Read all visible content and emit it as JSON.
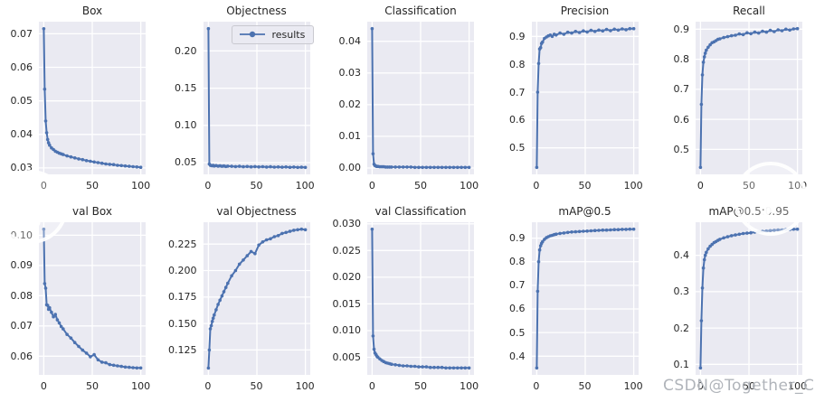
{
  "figure": {
    "background": "#ffffff",
    "axes_background": "#eaeaf2",
    "grid_color": "#ffffff",
    "line_color": "#4c72b0",
    "tick_color": "#262626",
    "title_color": "#262626"
  },
  "legend": {
    "label": "results"
  },
  "watermark": {
    "text": "CSDN@Together_CZ",
    "color": "#b0b4ba"
  },
  "carousel": {
    "prev": "chevron-left",
    "next": "chevron-right"
  },
  "chart_data": [
    {
      "type": "line",
      "title": "Box",
      "slug": "box",
      "series_name": "results",
      "xlim": [
        -5,
        105
      ],
      "ylim": [
        0.0281,
        0.0736
      ],
      "x_tick_values": [
        0,
        50,
        100
      ],
      "x_tick_labels": [
        "0",
        "50",
        "100"
      ],
      "y_tick_values": [
        0.03,
        0.04,
        0.05,
        0.06,
        0.07
      ],
      "y_tick_labels": [
        "0.03",
        "0.04",
        "0.05",
        "0.06",
        "0.07"
      ],
      "x": [
        0,
        1,
        2,
        3,
        4,
        5,
        6,
        8,
        10,
        12,
        14,
        16,
        18,
        20,
        24,
        28,
        32,
        36,
        40,
        44,
        48,
        52,
        56,
        60,
        64,
        68,
        72,
        76,
        80,
        84,
        88,
        92,
        96,
        100
      ],
      "y": [
        0.0715,
        0.0535,
        0.044,
        0.0405,
        0.0385,
        0.0375,
        0.0368,
        0.036,
        0.0355,
        0.035,
        0.0347,
        0.0344,
        0.0342,
        0.034,
        0.0336,
        0.0333,
        0.033,
        0.0327,
        0.0325,
        0.0322,
        0.032,
        0.0318,
        0.0316,
        0.0314,
        0.0312,
        0.0311,
        0.031,
        0.0308,
        0.0307,
        0.0306,
        0.0305,
        0.0304,
        0.0303,
        0.0302
      ]
    },
    {
      "type": "line",
      "title": "Objectness",
      "slug": "objectness",
      "series_name": "results",
      "legend_label": "results",
      "legend_position": "upper right",
      "xlim": [
        -5,
        105
      ],
      "ylim": [
        0.0342,
        0.2393
      ],
      "x_tick_values": [
        0,
        50,
        100
      ],
      "x_tick_labels": [
        "0",
        "50",
        "100"
      ],
      "y_tick_values": [
        0.05,
        0.1,
        0.15,
        0.2
      ],
      "y_tick_labels": [
        "0.05",
        "0.10",
        "0.15",
        "0.20"
      ],
      "x": [
        0,
        1,
        2,
        3,
        4,
        5,
        6,
        8,
        10,
        12,
        14,
        16,
        18,
        20,
        24,
        28,
        32,
        36,
        40,
        44,
        48,
        52,
        56,
        60,
        64,
        68,
        72,
        76,
        80,
        84,
        88,
        92,
        96,
        100
      ],
      "y": [
        0.23,
        0.048,
        0.0465,
        0.046,
        0.0458,
        0.0462,
        0.0455,
        0.046,
        0.0452,
        0.0456,
        0.045,
        0.0455,
        0.0448,
        0.0452,
        0.045,
        0.0446,
        0.045,
        0.0444,
        0.0448,
        0.0443,
        0.0446,
        0.0442,
        0.0445,
        0.044,
        0.0444,
        0.0439,
        0.0442,
        0.0438,
        0.0441,
        0.0437,
        0.044,
        0.0436,
        0.0438,
        0.0435
      ]
    },
    {
      "type": "line",
      "title": "Classification",
      "slug": "classification",
      "series_name": "results",
      "xlim": [
        -5,
        105
      ],
      "ylim": [
        -0.002,
        0.0462
      ],
      "x_tick_values": [
        0,
        50,
        100
      ],
      "x_tick_labels": [
        "0",
        "50",
        "100"
      ],
      "y_tick_values": [
        0.0,
        0.01,
        0.02,
        0.03,
        0.04
      ],
      "y_tick_labels": [
        "0.00",
        "0.01",
        "0.02",
        "0.03",
        "0.04"
      ],
      "x": [
        0,
        1,
        2,
        3,
        4,
        5,
        6,
        8,
        10,
        12,
        14,
        16,
        18,
        20,
        24,
        28,
        32,
        36,
        40,
        44,
        48,
        52,
        56,
        60,
        64,
        68,
        72,
        76,
        80,
        84,
        88,
        92,
        96,
        100
      ],
      "y": [
        0.044,
        0.0045,
        0.0012,
        0.0008,
        0.0006,
        0.0005,
        0.0005,
        0.0004,
        0.0004,
        0.0004,
        0.0003,
        0.0003,
        0.0003,
        0.0003,
        0.0003,
        0.0003,
        0.0003,
        0.0003,
        0.0003,
        0.0002,
        0.0002,
        0.0002,
        0.0002,
        0.0002,
        0.0002,
        0.0002,
        0.0002,
        0.0002,
        0.0002,
        0.0002,
        0.0002,
        0.0002,
        0.0002,
        0.0002
      ]
    },
    {
      "type": "line",
      "title": "Precision",
      "slug": "precision",
      "series_name": "results",
      "xlim": [
        -5,
        105
      ],
      "ylim": [
        0.405,
        0.953
      ],
      "x_tick_values": [
        0,
        50,
        100
      ],
      "x_tick_labels": [
        "0",
        "50",
        "100"
      ],
      "y_tick_values": [
        0.5,
        0.6,
        0.7,
        0.8,
        0.9
      ],
      "y_tick_labels": [
        "0.5",
        "0.6",
        "0.7",
        "0.8",
        "0.9"
      ],
      "x": [
        0,
        1,
        2,
        3,
        4,
        5,
        6,
        8,
        10,
        12,
        14,
        16,
        18,
        20,
        24,
        28,
        32,
        36,
        40,
        44,
        48,
        52,
        56,
        60,
        64,
        68,
        72,
        76,
        80,
        84,
        88,
        92,
        96,
        100
      ],
      "y": [
        0.43,
        0.7,
        0.803,
        0.855,
        0.86,
        0.875,
        0.88,
        0.893,
        0.898,
        0.902,
        0.905,
        0.9,
        0.908,
        0.905,
        0.912,
        0.908,
        0.915,
        0.912,
        0.918,
        0.914,
        0.92,
        0.916,
        0.922,
        0.918,
        0.923,
        0.92,
        0.925,
        0.921,
        0.926,
        0.923,
        0.927,
        0.924,
        0.928,
        0.928
      ]
    },
    {
      "type": "line",
      "title": "Recall",
      "slug": "recall",
      "series_name": "results",
      "xlim": [
        -5,
        105
      ],
      "ylim": [
        0.417,
        0.925
      ],
      "x_tick_values": [
        0,
        50,
        100
      ],
      "x_tick_labels": [
        "0",
        "50",
        "100"
      ],
      "y_tick_values": [
        0.5,
        0.6,
        0.7,
        0.8,
        0.9
      ],
      "y_tick_labels": [
        "0.5",
        "0.6",
        "0.7",
        "0.8",
        "0.9"
      ],
      "x": [
        0,
        1,
        2,
        3,
        4,
        5,
        6,
        8,
        10,
        12,
        14,
        16,
        18,
        20,
        24,
        28,
        32,
        36,
        40,
        44,
        48,
        52,
        56,
        60,
        64,
        68,
        72,
        76,
        80,
        84,
        88,
        92,
        96,
        100
      ],
      "y": [
        0.44,
        0.65,
        0.748,
        0.79,
        0.808,
        0.82,
        0.83,
        0.84,
        0.848,
        0.855,
        0.858,
        0.862,
        0.866,
        0.868,
        0.872,
        0.875,
        0.878,
        0.88,
        0.884,
        0.882,
        0.888,
        0.885,
        0.89,
        0.887,
        0.893,
        0.89,
        0.896,
        0.892,
        0.898,
        0.895,
        0.9,
        0.897,
        0.901,
        0.902
      ]
    },
    {
      "type": "line",
      "title": "val Box",
      "slug": "val-box",
      "series_name": "results",
      "xlim": [
        -5,
        105
      ],
      "ylim": [
        0.0538,
        0.1043
      ],
      "x_tick_values": [
        0,
        50,
        100
      ],
      "x_tick_labels": [
        "0",
        "50",
        "100"
      ],
      "y_tick_values": [
        0.06,
        0.07,
        0.08,
        0.09,
        0.1
      ],
      "y_tick_labels": [
        "0.06",
        "0.07",
        "0.08",
        "0.09",
        "0.10"
      ],
      "x": [
        0,
        1,
        2,
        3,
        4,
        5,
        6,
        8,
        10,
        12,
        14,
        16,
        18,
        20,
        24,
        28,
        32,
        36,
        40,
        44,
        48,
        52,
        56,
        60,
        64,
        68,
        72,
        76,
        80,
        84,
        88,
        92,
        96,
        100
      ],
      "y": [
        0.102,
        0.084,
        0.0825,
        0.077,
        0.0768,
        0.0755,
        0.076,
        0.0745,
        0.073,
        0.0738,
        0.072,
        0.071,
        0.0698,
        0.069,
        0.0672,
        0.066,
        0.0645,
        0.0632,
        0.062,
        0.061,
        0.0598,
        0.0605,
        0.0588,
        0.058,
        0.0578,
        0.0572,
        0.057,
        0.0568,
        0.0566,
        0.0564,
        0.0563,
        0.0562,
        0.0561,
        0.0561
      ]
    },
    {
      "type": "line",
      "title": "val Objectness",
      "slug": "val-objectness",
      "series_name": "results",
      "xlim": [
        -5,
        105
      ],
      "ylim": [
        0.1015,
        0.2456
      ],
      "x_tick_values": [
        0,
        50,
        100
      ],
      "x_tick_labels": [
        "0",
        "50",
        "100"
      ],
      "y_tick_values": [
        0.125,
        0.15,
        0.175,
        0.2,
        0.225
      ],
      "y_tick_labels": [
        "0.125",
        "0.150",
        "0.175",
        "0.200",
        "0.225"
      ],
      "x": [
        0,
        1,
        2,
        3,
        4,
        5,
        6,
        8,
        10,
        12,
        14,
        16,
        18,
        20,
        24,
        28,
        32,
        36,
        40,
        44,
        48,
        52,
        56,
        60,
        64,
        68,
        72,
        76,
        80,
        84,
        88,
        92,
        96,
        100
      ],
      "y": [
        0.108,
        0.125,
        0.145,
        0.148,
        0.152,
        0.155,
        0.158,
        0.163,
        0.168,
        0.172,
        0.176,
        0.18,
        0.184,
        0.188,
        0.195,
        0.2,
        0.206,
        0.21,
        0.214,
        0.218,
        0.216,
        0.224,
        0.227,
        0.229,
        0.23,
        0.232,
        0.233,
        0.235,
        0.236,
        0.237,
        0.238,
        0.2385,
        0.239,
        0.2385
      ]
    },
    {
      "type": "line",
      "title": "val Classification",
      "slug": "val-classification",
      "series_name": "results",
      "xlim": [
        -5,
        105
      ],
      "ylim": [
        0.0017,
        0.0303
      ],
      "x_tick_values": [
        0,
        50,
        100
      ],
      "x_tick_labels": [
        "0",
        "50",
        "100"
      ],
      "y_tick_values": [
        0.005,
        0.01,
        0.015,
        0.02,
        0.025,
        0.03
      ],
      "y_tick_labels": [
        "0.005",
        "0.010",
        "0.015",
        "0.020",
        "0.025",
        "0.030"
      ],
      "x": [
        0,
        1,
        2,
        3,
        4,
        5,
        6,
        8,
        10,
        12,
        14,
        16,
        18,
        20,
        24,
        28,
        32,
        36,
        40,
        44,
        48,
        52,
        56,
        60,
        64,
        68,
        72,
        76,
        80,
        84,
        88,
        92,
        96,
        100
      ],
      "y": [
        0.029,
        0.009,
        0.0065,
        0.0058,
        0.0055,
        0.0052,
        0.005,
        0.0047,
        0.0044,
        0.0042,
        0.004,
        0.0039,
        0.0038,
        0.0037,
        0.0036,
        0.0035,
        0.0034,
        0.0034,
        0.0033,
        0.0033,
        0.0032,
        0.0032,
        0.0032,
        0.0031,
        0.0031,
        0.0031,
        0.0031,
        0.003,
        0.003,
        0.003,
        0.003,
        0.003,
        0.003,
        0.003
      ]
    },
    {
      "type": "line",
      "title": "mAP@0.5",
      "slug": "map-0-5",
      "series_name": "results",
      "xlim": [
        -5,
        105
      ],
      "ylim": [
        0.3206,
        0.9674
      ],
      "x_tick_values": [
        0,
        50,
        100
      ],
      "x_tick_labels": [
        "0",
        "50",
        "100"
      ],
      "y_tick_values": [
        0.4,
        0.5,
        0.6,
        0.7,
        0.8,
        0.9
      ],
      "y_tick_labels": [
        "0.4",
        "0.5",
        "0.6",
        "0.7",
        "0.8",
        "0.9"
      ],
      "x": [
        0,
        1,
        2,
        3,
        4,
        5,
        6,
        8,
        10,
        12,
        14,
        16,
        18,
        20,
        24,
        28,
        32,
        36,
        40,
        44,
        48,
        52,
        56,
        60,
        64,
        68,
        72,
        76,
        80,
        84,
        88,
        92,
        96,
        100
      ],
      "y": [
        0.35,
        0.675,
        0.8,
        0.85,
        0.868,
        0.878,
        0.885,
        0.895,
        0.902,
        0.906,
        0.91,
        0.912,
        0.915,
        0.917,
        0.92,
        0.922,
        0.924,
        0.926,
        0.927,
        0.928,
        0.929,
        0.93,
        0.931,
        0.932,
        0.933,
        0.934,
        0.934,
        0.935,
        0.936,
        0.936,
        0.937,
        0.937,
        0.938,
        0.938
      ]
    },
    {
      "type": "line",
      "title": "mAP@0.5:0.95",
      "slug": "map-0-5-0-95",
      "series_name": "results",
      "xlim": [
        -5,
        105
      ],
      "ylim": [
        0.0709,
        0.4911
      ],
      "x_tick_values": [
        0,
        50,
        100
      ],
      "x_tick_labels": [
        "0",
        "50",
        "100"
      ],
      "y_tick_values": [
        0.1,
        0.2,
        0.3,
        0.4
      ],
      "y_tick_labels": [
        "0.1",
        "0.2",
        "0.3",
        "0.4"
      ],
      "x": [
        0,
        1,
        2,
        3,
        4,
        5,
        6,
        8,
        10,
        12,
        14,
        16,
        18,
        20,
        24,
        28,
        32,
        36,
        40,
        44,
        48,
        52,
        56,
        60,
        64,
        68,
        72,
        76,
        80,
        84,
        88,
        92,
        96,
        100
      ],
      "y": [
        0.09,
        0.22,
        0.31,
        0.365,
        0.388,
        0.4,
        0.408,
        0.418,
        0.425,
        0.43,
        0.435,
        0.438,
        0.441,
        0.444,
        0.448,
        0.451,
        0.454,
        0.456,
        0.458,
        0.46,
        0.461,
        0.462,
        0.464,
        0.465,
        0.466,
        0.467,
        0.468,
        0.469,
        0.47,
        0.47,
        0.471,
        0.471,
        0.472,
        0.472
      ]
    }
  ]
}
